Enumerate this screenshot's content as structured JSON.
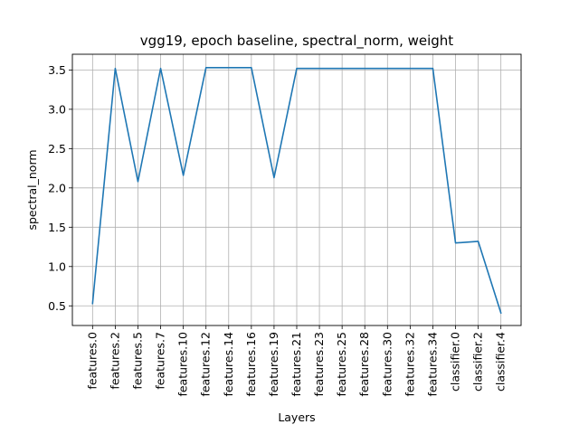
{
  "chart_data": {
    "type": "line",
    "title": "vgg19, epoch baseline, spectral_norm, weight",
    "xlabel": "Layers",
    "ylabel": "spectral_norm",
    "categories": [
      "features.0",
      "features.2",
      "features.5",
      "features.7",
      "features.10",
      "features.12",
      "features.14",
      "features.16",
      "features.19",
      "features.21",
      "features.23",
      "features.25",
      "features.28",
      "features.30",
      "features.32",
      "features.34",
      "classifier.0",
      "classifier.2",
      "classifier.4"
    ],
    "series": [
      {
        "values": [
          0.53,
          3.52,
          2.08,
          3.52,
          2.16,
          3.53,
          3.53,
          3.53,
          2.13,
          3.52,
          3.52,
          3.52,
          3.52,
          3.52,
          3.52,
          3.52,
          1.3,
          1.32,
          0.41
        ],
        "color": "#1f77b4"
      }
    ],
    "ylim": [
      0.25,
      3.7
    ],
    "yticks": [
      0.5,
      1.0,
      1.5,
      2.0,
      2.5,
      3.0,
      3.5
    ],
    "ytick_labels": [
      "0.5",
      "1.0",
      "1.5",
      "2.0",
      "2.5",
      "3.0",
      "3.5"
    ],
    "grid": true,
    "legend": "none"
  }
}
